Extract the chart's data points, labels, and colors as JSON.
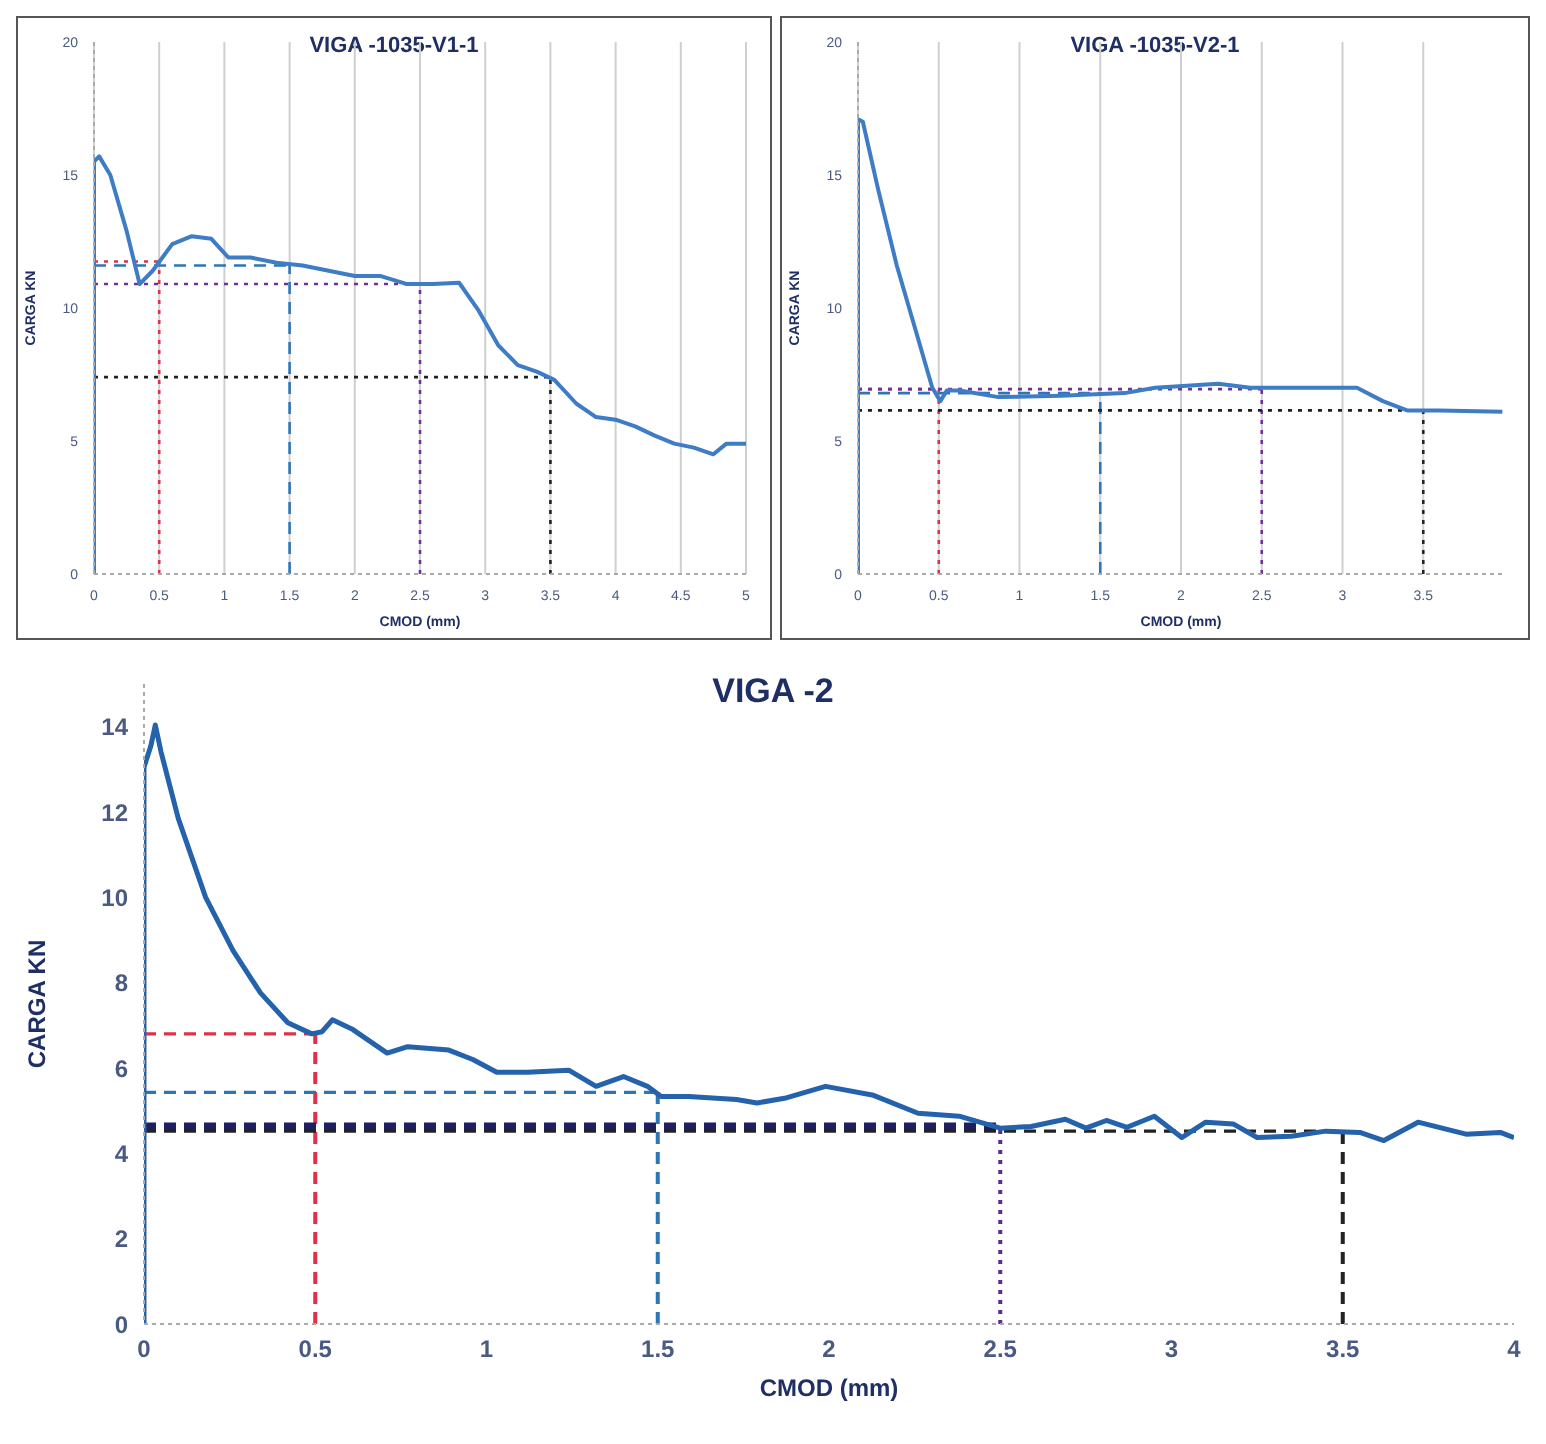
{
  "chart_data": [
    {
      "type": "line",
      "title": "VIGA -1035-V1-1",
      "xlabel": "CMOD (mm)",
      "ylabel": "CARGA KN",
      "xlim": [
        0,
        5
      ],
      "xticks": [
        0,
        0.5,
        1,
        1.5,
        2,
        2.5,
        3,
        3.5,
        4,
        4.5,
        5
      ],
      "ylim": [
        0,
        20
      ],
      "yticks": [
        0,
        5,
        10,
        15,
        20
      ],
      "grid": "x",
      "legend": false,
      "marker": "none",
      "line_style": "solid",
      "series": [
        {
          "color": "#3f7cc6",
          "x": [
            0,
            0,
            0.04,
            0.125,
            0.25,
            0.35,
            0.45,
            0.6,
            0.75,
            0.9,
            1.03,
            1.2,
            1.4,
            1.6,
            1.8,
            2.0,
            2.2,
            2.4,
            2.6,
            2.8,
            2.95,
            3.1,
            3.25,
            3.4,
            3.53,
            3.7,
            3.85,
            4.0,
            4.15,
            4.3,
            4.45,
            4.6,
            4.75,
            4.85,
            5.0
          ],
          "values": [
            0,
            15.5,
            15.7,
            15,
            12.9,
            10.9,
            11.4,
            12.4,
            12.7,
            12.6,
            11.9,
            11.9,
            11.7,
            11.6,
            11.4,
            11.2,
            11.2,
            10.9,
            10.9,
            10.95,
            9.9,
            8.6,
            7.85,
            7.6,
            7.3,
            6.4,
            5.9,
            5.8,
            5.55,
            5.2,
            4.9,
            4.75,
            4.5,
            4.9,
            4.9
          ]
        }
      ],
      "ref_lines": [
        {
          "axis": "x",
          "value": 0.5,
          "color": "#e0304a",
          "line_style": "dotted"
        },
        {
          "axis": "y",
          "value": 11.75,
          "color": "#e0304a",
          "line_style": "dotted"
        },
        {
          "axis": "x",
          "value": 1.5,
          "color": "#2e75b6",
          "line_style": "dashed"
        },
        {
          "axis": "y",
          "value": 11.6,
          "color": "#2e75b6",
          "line_style": "dashed"
        },
        {
          "axis": "x",
          "value": 2.5,
          "color": "#7030a0",
          "line_style": "dotted"
        },
        {
          "axis": "y",
          "value": 10.9,
          "color": "#7030a0",
          "line_style": "dotted"
        },
        {
          "axis": "x",
          "value": 3.5,
          "color": "#222222",
          "line_style": "dotted"
        },
        {
          "axis": "y",
          "value": 7.4,
          "color": "#222222",
          "line_style": "dotted"
        }
      ]
    },
    {
      "type": "line",
      "title": "VIGA -1035-V2-1",
      "xlabel": "CMOD (mm)",
      "ylabel": "CARGA KN",
      "xlim": [
        0,
        4
      ],
      "xticks": [
        0,
        0.5,
        1,
        1.5,
        2,
        2.5,
        3,
        3.5
      ],
      "ylim": [
        0,
        20
      ],
      "yticks": [
        0,
        5,
        10,
        15,
        20
      ],
      "grid": "x",
      "legend": false,
      "marker": "none",
      "line_style": "solid",
      "series": [
        {
          "color": "#3f7cc6",
          "x": [
            0,
            0,
            0.03,
            0.125,
            0.24,
            0.36,
            0.46,
            0.51,
            0.55,
            0.63,
            0.87,
            1.26,
            1.65,
            1.84,
            2.23,
            2.43,
            2.82,
            3.09,
            3.25,
            3.4,
            3.6,
            3.99
          ],
          "values": [
            0,
            17.1,
            17.0,
            14.45,
            11.6,
            9.1,
            7.0,
            6.5,
            6.9,
            6.9,
            6.65,
            6.7,
            6.8,
            7.0,
            7.15,
            7.0,
            7.0,
            7.0,
            6.5,
            6.15,
            6.15,
            6.1
          ]
        }
      ],
      "ref_lines": [
        {
          "axis": "x",
          "value": 0.5,
          "color": "#e0304a",
          "line_style": "dotted"
        },
        {
          "axis": "y",
          "value": 6.95,
          "color": "#e0304a",
          "line_style": "dotted"
        },
        {
          "axis": "x",
          "value": 1.5,
          "color": "#2e75b6",
          "line_style": "dashed"
        },
        {
          "axis": "y",
          "value": 6.8,
          "color": "#2e75b6",
          "line_style": "dashed"
        },
        {
          "axis": "x",
          "value": 2.5,
          "color": "#7030a0",
          "line_style": "dotted"
        },
        {
          "axis": "y",
          "value": 6.95,
          "color": "#7030a0",
          "line_style": "dotted"
        },
        {
          "axis": "x",
          "value": 3.5,
          "color": "#222222",
          "line_style": "dotted"
        },
        {
          "axis": "y",
          "value": 6.15,
          "color": "#222222",
          "line_style": "dotted"
        }
      ]
    },
    {
      "type": "line",
      "title": "VIGA -2",
      "xlabel": "CMOD (mm)",
      "ylabel": "CARGA KN",
      "xlim": [
        0,
        4
      ],
      "xticks": [
        0,
        0.5,
        1,
        1.5,
        2,
        2.5,
        3,
        3.5,
        4
      ],
      "ylim": [
        0,
        15
      ],
      "yticks": [
        0,
        2,
        4,
        6,
        8,
        10,
        12,
        14
      ],
      "legend": false,
      "marker": "none",
      "line_style": "solid",
      "series": [
        {
          "color": "#2462ac",
          "x": [
            0,
            0,
            0.02,
            0.033,
            0.05,
            0.1,
            0.18,
            0.26,
            0.34,
            0.42,
            0.49,
            0.52,
            0.55,
            0.61,
            0.71,
            0.77,
            0.89,
            0.96,
            1.03,
            1.12,
            1.24,
            1.32,
            1.4,
            1.47,
            1.51,
            1.59,
            1.73,
            1.79,
            1.87,
            1.99,
            2.13,
            2.26,
            2.38,
            2.5,
            2.59,
            2.69,
            2.75,
            2.81,
            2.87,
            2.95,
            3.03,
            3.1,
            3.18,
            3.25,
            3.35,
            3.45,
            3.55,
            3.62,
            3.72,
            3.86,
            3.96,
            4.0
          ],
          "values": [
            0,
            13.05,
            13.55,
            14.04,
            13.4,
            11.85,
            10.0,
            8.75,
            7.76,
            7.06,
            6.8,
            6.85,
            7.13,
            6.9,
            6.35,
            6.5,
            6.42,
            6.2,
            5.9,
            5.9,
            5.95,
            5.57,
            5.8,
            5.57,
            5.33,
            5.33,
            5.26,
            5.18,
            5.29,
            5.57,
            5.36,
            4.94,
            4.87,
            4.59,
            4.63,
            4.8,
            4.59,
            4.77,
            4.61,
            4.87,
            4.37,
            4.73,
            4.69,
            4.37,
            4.4,
            4.52,
            4.49,
            4.3,
            4.73,
            4.45,
            4.49,
            4.37
          ]
        }
      ],
      "ref_lines": [
        {
          "axis": "x",
          "value": 0.5,
          "color": "#e0304a",
          "line_style": "dashed"
        },
        {
          "axis": "y",
          "value": 6.8,
          "color": "#e0304a",
          "line_style": "dashed"
        },
        {
          "axis": "x",
          "value": 1.5,
          "color": "#2e75b6",
          "line_style": "dashed"
        },
        {
          "axis": "y",
          "value": 5.43,
          "color": "#2e75b6",
          "line_style": "dashed"
        },
        {
          "axis": "x",
          "value": 2.5,
          "color": "#5b2d90",
          "line_style": "dotted"
        },
        {
          "axis": "y",
          "value": 4.63,
          "color": "#1f1f5f",
          "line_style": "dashed"
        },
        {
          "axis": "x",
          "value": 3.5,
          "color": "#222222",
          "line_style": "dashed"
        },
        {
          "axis": "y",
          "value": 4.52,
          "color": "#222222",
          "line_style": "dashed"
        }
      ]
    }
  ]
}
